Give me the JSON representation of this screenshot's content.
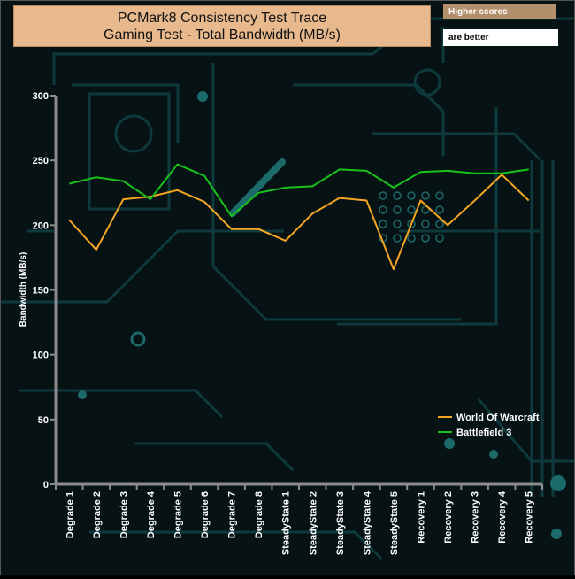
{
  "header": {
    "title_line1": "PCMark8 Consistency Test Trace",
    "title_line2": "Gaming Test - Total Bandwidth (MB/s)",
    "note_line1": "Higher scores",
    "note_line2": "are better"
  },
  "colors": {
    "background": "#061214",
    "circuit": "#0e3a3d",
    "axis": "#8c8c8c",
    "label": "#ffffff",
    "title_bg": "#e7b98c",
    "world_of_warcraft": "#f5a623",
    "battlefield_3": "#19c21b"
  },
  "chart_data": {
    "type": "line",
    "ylabel": "Bandwidth (MB/s)",
    "xlabel": "",
    "ylim": [
      0,
      300
    ],
    "yticks": [
      0,
      50,
      100,
      150,
      200,
      250,
      300
    ],
    "grid": false,
    "legend_position": "bottom-right",
    "categories": [
      "Degrade 1",
      "Degrade 2",
      "Degrade 3",
      "Degrade 4",
      "Degrade 5",
      "Degrade 6",
      "Degrade 7",
      "Degrade 8",
      "SteadyState 1",
      "SteadyState 2",
      "SteadyState 3",
      "SteadyState 4",
      "SteadyState 5",
      "Recovery 1",
      "Recovery 2",
      "Recovery 3",
      "Recovery 4",
      "Recovery 5"
    ],
    "series": [
      {
        "name": "World Of Warcraft",
        "color": "#f5a623",
        "values": [
          204,
          181,
          220,
          222,
          227,
          218,
          197,
          197,
          188,
          209,
          221,
          219,
          166,
          219,
          200,
          219,
          239,
          219
        ]
      },
      {
        "name": "Battlefield 3",
        "color": "#19c21b",
        "values": [
          232,
          237,
          234,
          220,
          247,
          238,
          207,
          225,
          229,
          230,
          243,
          242,
          229,
          241,
          242,
          240,
          240,
          243
        ]
      }
    ]
  }
}
